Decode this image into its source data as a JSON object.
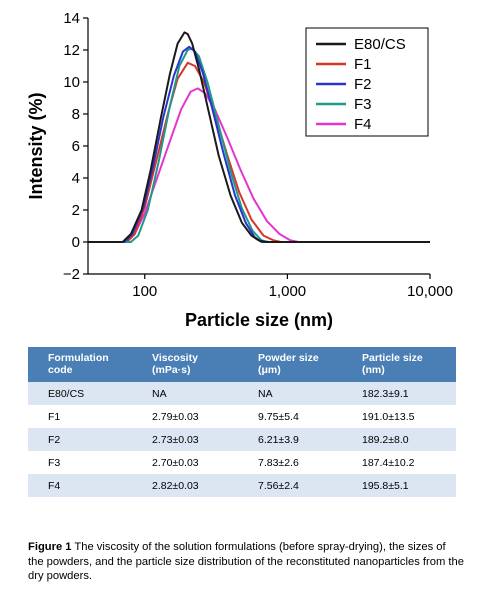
{
  "chart_data": {
    "type": "line",
    "xlabel": "Particle size (nm)",
    "ylabel": "Intensity (%)",
    "xscale": "log",
    "xlim": [
      40,
      10000
    ],
    "ylim": [
      -2,
      14
    ],
    "x_ticks": [
      100,
      1000,
      10000
    ],
    "x_tick_labels": [
      "100",
      "1,000",
      "10,000"
    ],
    "y_ticks": [
      -2,
      0,
      2,
      4,
      6,
      8,
      10,
      12,
      14
    ],
    "y_tick_labels": [
      "−2",
      "0",
      "2",
      "4",
      "6",
      "8",
      "10",
      "12",
      "14"
    ],
    "grid": false,
    "legend_position": "top-right",
    "series": [
      {
        "name": "E80/CS",
        "color": "#1a1a1a",
        "x": [
          40,
          70,
          80,
          95,
          110,
          130,
          150,
          170,
          190,
          200,
          215,
          240,
          280,
          330,
          400,
          480,
          560,
          630,
          700,
          10000
        ],
        "y": [
          0,
          0,
          0.5,
          2,
          4.5,
          7.8,
          10.5,
          12.4,
          13.1,
          13.0,
          12.4,
          10.8,
          8.2,
          5.4,
          2.9,
          1.2,
          0.4,
          0.1,
          0,
          0
        ]
      },
      {
        "name": "F1",
        "color": "#d9342b",
        "x": [
          40,
          75,
          85,
          100,
          120,
          145,
          170,
          200,
          225,
          260,
          310,
          380,
          460,
          560,
          680,
          800,
          900,
          10000
        ],
        "y": [
          0,
          0,
          0.5,
          2.2,
          5,
          8,
          10.2,
          11.2,
          11.0,
          10.0,
          8.0,
          5.4,
          3.1,
          1.4,
          0.4,
          0.1,
          0,
          0
        ]
      },
      {
        "name": "F2",
        "color": "#2a35c9",
        "x": [
          40,
          72,
          82,
          98,
          115,
          135,
          160,
          185,
          205,
          225,
          255,
          300,
          360,
          430,
          510,
          590,
          660,
          10000
        ],
        "y": [
          0,
          0,
          0.5,
          2.2,
          4.8,
          7.8,
          10.4,
          11.9,
          12.2,
          11.9,
          10.6,
          8.2,
          5.4,
          2.9,
          1.2,
          0.3,
          0,
          0
        ]
      },
      {
        "name": "F3",
        "color": "#1f9a8a",
        "x": [
          40,
          80,
          90,
          105,
          125,
          150,
          175,
          200,
          215,
          240,
          275,
          330,
          400,
          480,
          570,
          660,
          740,
          10000
        ],
        "y": [
          0,
          0,
          0.4,
          2.0,
          5.0,
          8.5,
          11.0,
          12.0,
          12.1,
          11.6,
          10.0,
          7.3,
          4.4,
          2.1,
          0.7,
          0.1,
          0,
          0
        ]
      },
      {
        "name": "F4",
        "color": "#e535d0",
        "x": [
          40,
          72,
          85,
          100,
          120,
          150,
          180,
          210,
          235,
          265,
          310,
          380,
          470,
          580,
          720,
          880,
          1050,
          1200,
          10000
        ],
        "y": [
          0,
          0,
          0.5,
          1.8,
          3.8,
          6.3,
          8.3,
          9.4,
          9.6,
          9.3,
          8.3,
          6.5,
          4.5,
          2.7,
          1.3,
          0.5,
          0.1,
          0,
          0
        ]
      }
    ]
  },
  "table": {
    "headers": [
      "Formulation code",
      "Viscosity (mPa·s)",
      "Powder size (μm)",
      "Particle size (nm)"
    ],
    "header_lines": [
      [
        "Formulation",
        "code"
      ],
      [
        "Viscosity",
        "(mPa·s)"
      ],
      [
        "Powder size",
        "(μm)"
      ],
      [
        "Particle size",
        "(nm)"
      ]
    ],
    "rows": [
      [
        "E80/CS",
        "NA",
        "NA",
        "182.3±9.1"
      ],
      [
        "F1",
        "2.79±0.03",
        "9.75±5.4",
        "191.0±13.5"
      ],
      [
        "F2",
        "2.73±0.03",
        "6.21±3.9",
        "189.2±8.0"
      ],
      [
        "F3",
        "2.70±0.03",
        "7.83±2.6",
        "187.4±10.2"
      ],
      [
        "F4",
        "2.82±0.03",
        "7.56±2.4",
        "195.8±5.1"
      ]
    ]
  },
  "caption": {
    "label": "Figure 1",
    "text": "The viscosity of the solution formulations (before spray-drying), the sizes of the powders, and the particle size distribution of the reconstituted nanoparticles from the dry powders."
  },
  "colors": {
    "table_header_bg": "#4a7fb5",
    "table_stripe_bg": "#dbe6f2"
  }
}
